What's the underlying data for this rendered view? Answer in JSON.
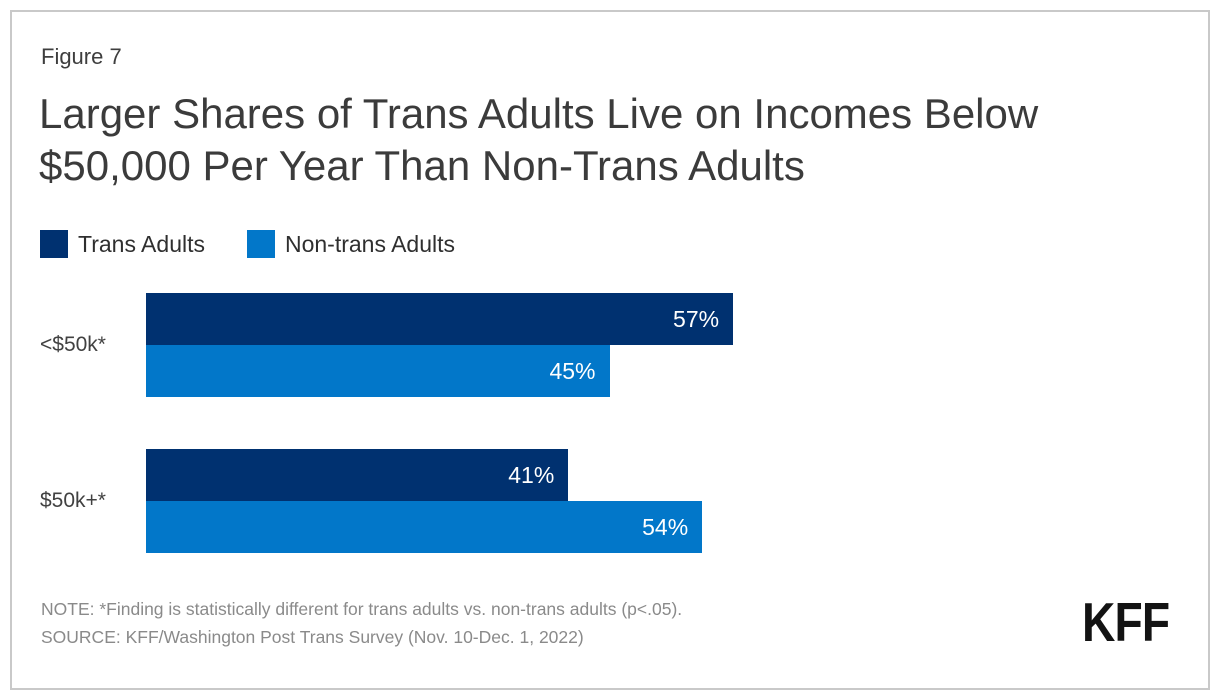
{
  "figure_label": "Figure 7",
  "title": "Larger Shares of Trans Adults Live on Incomes Below $50,000 Per Year Than Non-Trans Adults",
  "legend": [
    {
      "label": "Trans Adults",
      "color": "#003170"
    },
    {
      "label": "Non-trans Adults",
      "color": "#0277c9"
    }
  ],
  "chart_data": {
    "type": "bar",
    "orientation": "horizontal",
    "title": "Larger Shares of Trans Adults Live on Incomes Below $50,000 Per Year Than Non-Trans Adults",
    "categories": [
      "<$50k*",
      "$50k+*"
    ],
    "series": [
      {
        "name": "Trans Adults",
        "color": "#003170",
        "values": [
          57,
          41
        ]
      },
      {
        "name": "Non-trans Adults",
        "color": "#0277c9",
        "values": [
          45,
          54
        ]
      }
    ],
    "value_suffix": "%",
    "xlim": [
      0,
      100
    ],
    "grid": false,
    "legend_position": "top-left",
    "value_labels": "inside-end"
  },
  "note": "NOTE: *Finding is statistically different for trans adults vs. non-trans adults (p<.05).",
  "source": "SOURCE: KFF/Washington Post Trans Survey (Nov. 10-Dec. 1, 2022)",
  "logo_text": "KFF",
  "colors": {
    "trans_adults": "#003170",
    "non_trans_adults": "#0277c9",
    "title_text": "#3b3b3b",
    "note_text": "#8a8a8a",
    "frame_border": "#c9c9c9"
  }
}
